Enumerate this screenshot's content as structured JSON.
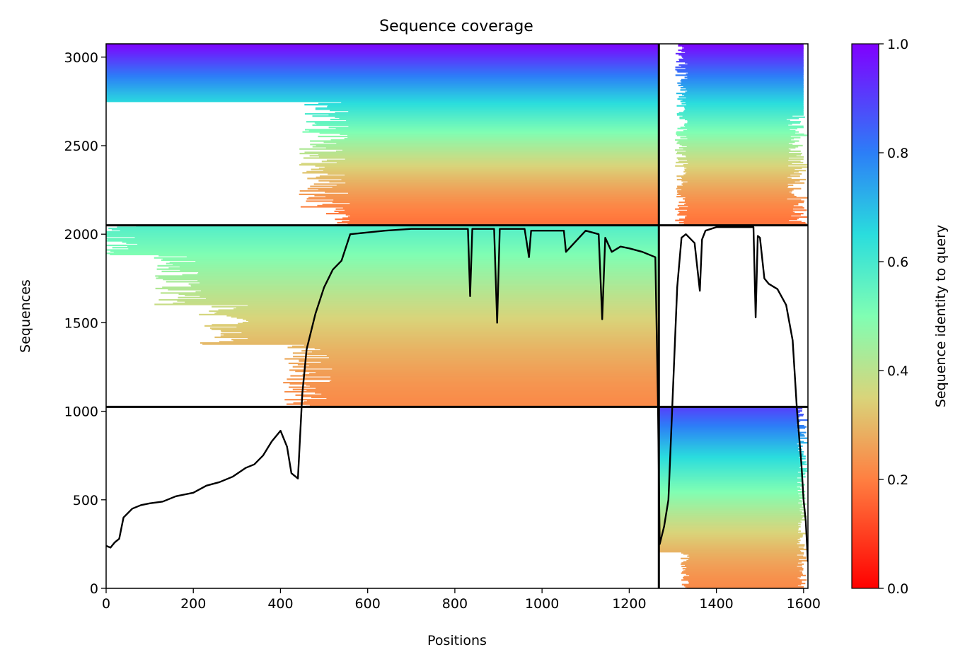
{
  "chart_data": {
    "type": "heatmap",
    "title": "Sequence coverage",
    "xlabel": "Positions",
    "ylabel": "Sequences",
    "xlim": [
      0,
      1610
    ],
    "ylim": [
      0,
      3075
    ],
    "xticks": [
      0,
      200,
      400,
      600,
      800,
      1000,
      1200,
      1400,
      1600
    ],
    "yticks": [
      0,
      500,
      1000,
      1500,
      2000,
      2500,
      3000
    ],
    "grid": false,
    "colorbar": {
      "label": "Sequence identity to query",
      "colormap": "rainbow_r",
      "range": [
        0,
        1
      ],
      "ticks": [
        0.0,
        0.2,
        0.4,
        0.6,
        0.8,
        1.0
      ],
      "tick_labels": [
        "0.0",
        "0.2",
        "0.4",
        "0.6",
        "0.8",
        "1.0"
      ]
    },
    "blocks": [
      {
        "name": "chain-1-only",
        "x_range": [
          0,
          1268
        ],
        "y_range": [
          0,
          1025
        ],
        "filled": false
      },
      {
        "name": "chain-1-paired",
        "x_range": [
          0,
          1268
        ],
        "y_range": [
          1025,
          2050
        ],
        "filled": true,
        "coverage_start_by_identity": [
          [
            0.2,
            440
          ],
          [
            0.3,
            250
          ],
          [
            0.38,
            150
          ],
          [
            0.5,
            0
          ],
          [
            0.6,
            0
          ]
        ],
        "dense_from": 560,
        "identity_range": [
          0.22,
          0.58
        ]
      },
      {
        "name": "chain-1-top",
        "x_range": [
          0,
          1268
        ],
        "y_range": [
          2050,
          3075
        ],
        "filled": true,
        "dense_from": 560,
        "identity_range": [
          0.18,
          1.0
        ]
      },
      {
        "name": "chain-2-bottom",
        "x_range": [
          1268,
          1610
        ],
        "y_range": [
          0,
          1025
        ],
        "filled": true,
        "identity_range": [
          0.22,
          0.9
        ]
      },
      {
        "name": "chain-2-paired",
        "x_range": [
          1268,
          1610
        ],
        "y_range": [
          1025,
          2050
        ],
        "filled": false
      },
      {
        "name": "chain-2-top",
        "x_range": [
          1268,
          1610
        ],
        "y_range": [
          2050,
          3075
        ],
        "filled": true,
        "identity_range": [
          0.18,
          1.0
        ]
      }
    ],
    "dividers": {
      "vertical_x": [
        1268
      ],
      "horizontal_y": [
        1025,
        2050
      ]
    },
    "series": [
      {
        "type": "line",
        "color": "#000000",
        "x": [
          0,
          10,
          20,
          30,
          40,
          60,
          80,
          100,
          130,
          160,
          200,
          230,
          260,
          290,
          320,
          340,
          360,
          380,
          400,
          415,
          425,
          440,
          450,
          460,
          470,
          480,
          500,
          520,
          540,
          560,
          600,
          640,
          700,
          750,
          800,
          830,
          835,
          840,
          890,
          897,
          903,
          960,
          970,
          975,
          1050,
          1055,
          1100,
          1130,
          1138,
          1145,
          1160,
          1180,
          1200,
          1230,
          1260,
          1266,
          1270,
          1280,
          1290,
          1300,
          1310,
          1320,
          1330,
          1350,
          1362,
          1367,
          1375,
          1400,
          1450,
          1485,
          1490,
          1495,
          1500,
          1510,
          1520,
          1540,
          1560,
          1575,
          1585,
          1595,
          1600,
          1605,
          1610
        ],
        "y": [
          240,
          230,
          260,
          280,
          400,
          450,
          470,
          480,
          490,
          520,
          540,
          580,
          600,
          630,
          680,
          700,
          750,
          830,
          890,
          800,
          650,
          620,
          1100,
          1350,
          1450,
          1550,
          1700,
          1800,
          1850,
          2000,
          2010,
          2020,
          2030,
          2030,
          2030,
          2030,
          1650,
          2030,
          2030,
          1500,
          2030,
          2030,
          1870,
          2020,
          2020,
          1900,
          2020,
          2000,
          1520,
          1980,
          1900,
          1930,
          1920,
          1900,
          1870,
          1050,
          250,
          350,
          500,
          1100,
          1700,
          1980,
          2000,
          1950,
          1680,
          1970,
          2020,
          2040,
          2040,
          2040,
          1530,
          1990,
          1980,
          1750,
          1720,
          1690,
          1600,
          1400,
          1000,
          700,
          500,
          380,
          150
        ]
      }
    ]
  }
}
